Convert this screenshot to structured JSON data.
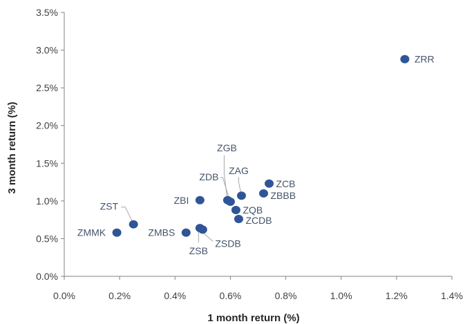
{
  "chart_data": {
    "type": "scatter",
    "xlabel": "1 month return (%)",
    "ylabel": "3 month return (%)",
    "xlim": [
      0,
      1.4
    ],
    "ylim": [
      0,
      3.5
    ],
    "x_ticks": [
      0,
      0.2,
      0.4,
      0.6,
      0.8,
      1.0,
      1.2,
      1.4
    ],
    "y_ticks": [
      0,
      0.5,
      1.0,
      1.5,
      2.0,
      2.5,
      3.0,
      3.5
    ],
    "x_tick_labels": [
      "0.0%",
      "0.2%",
      "0.4%",
      "0.6%",
      "0.8%",
      "1.0%",
      "1.2%",
      "1.4%"
    ],
    "y_tick_labels": [
      "0.0%",
      "0.5%",
      "1.0%",
      "1.5%",
      "2.0%",
      "2.5%",
      "3.0%",
      "3.5%"
    ],
    "grid": false,
    "marker_color": "#2f5597",
    "label_color": "#44546a",
    "points": [
      {
        "label": "ZMMK",
        "x": 0.19,
        "y": 0.58
      },
      {
        "label": "ZST",
        "x": 0.25,
        "y": 0.69
      },
      {
        "label": "ZMBS",
        "x": 0.44,
        "y": 0.58
      },
      {
        "label": "ZBI",
        "x": 0.49,
        "y": 1.01
      },
      {
        "label": "ZSB",
        "x": 0.49,
        "y": 0.64
      },
      {
        "label": "ZSDB",
        "x": 0.5,
        "y": 0.62
      },
      {
        "label": "ZGB",
        "x": 0.59,
        "y": 1.01
      },
      {
        "label": "ZDB",
        "x": 0.6,
        "y": 0.99
      },
      {
        "label": "ZQB",
        "x": 0.62,
        "y": 0.88
      },
      {
        "label": "ZCDB",
        "x": 0.63,
        "y": 0.76
      },
      {
        "label": "ZAG",
        "x": 0.64,
        "y": 1.07
      },
      {
        "label": "ZBBB",
        "x": 0.72,
        "y": 1.1
      },
      {
        "label": "ZCB",
        "x": 0.74,
        "y": 1.23
      },
      {
        "label": "ZRR",
        "x": 1.23,
        "y": 2.88
      }
    ]
  }
}
